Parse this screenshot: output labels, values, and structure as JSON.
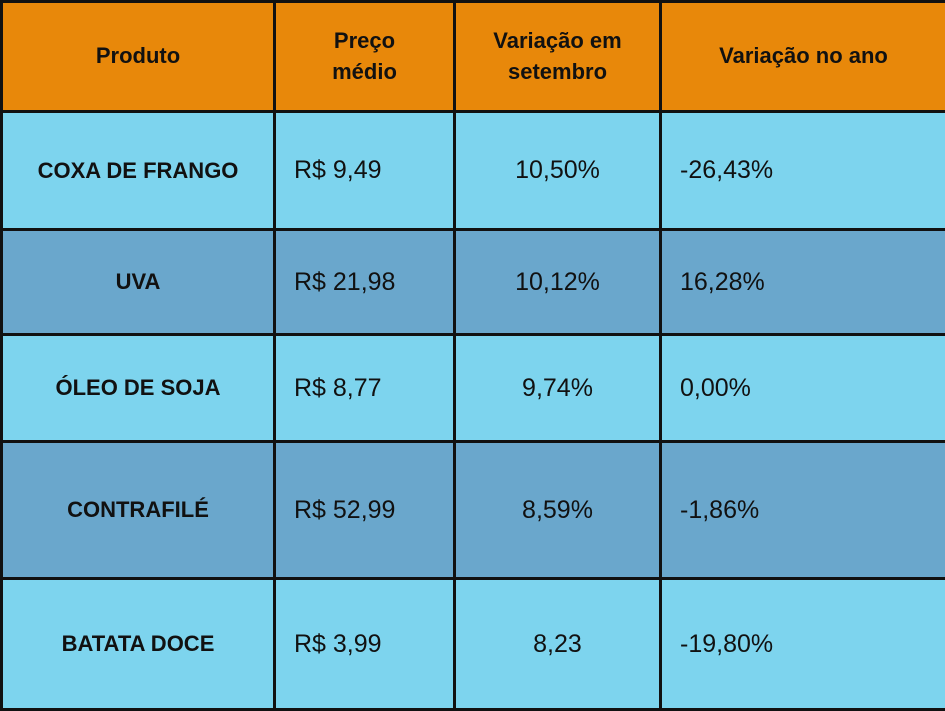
{
  "headers": [
    "Produto",
    "Preço médio",
    "Variação em setembro",
    "Variação no ano"
  ],
  "rows": [
    {
      "product": "COXA DE FRANGO",
      "price": "R$ 9,49",
      "sep": "10,50%",
      "year": "-26,43%"
    },
    {
      "product": "UVA",
      "price": "R$ 21,98",
      "sep": "10,12%",
      "year": "16,28%"
    },
    {
      "product": "ÓLEO DE SOJA",
      "price": "R$ 8,77",
      "sep": "9,74%",
      "year": "0,00%"
    },
    {
      "product": "CONTRAFILÉ",
      "price": "R$ 52,99",
      "sep": "8,59%",
      "year": "-1,86%"
    },
    {
      "product": "BATATA DOCE",
      "price": "R$ 3,99",
      "sep": "8,23",
      "year": "-19,80%"
    }
  ],
  "colors": {
    "header": "#E8880A",
    "row_light": "#7DD4EE",
    "row_dark": "#6AA7CC"
  }
}
